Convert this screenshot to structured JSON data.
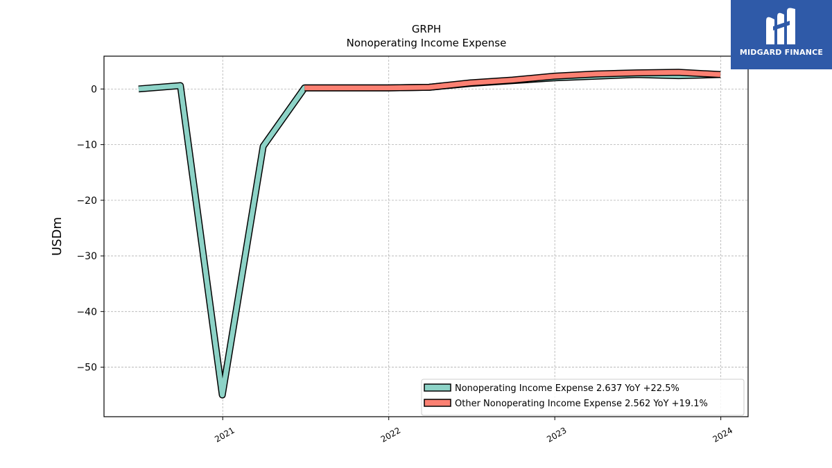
{
  "brand": {
    "name": "MIDGARD FINANCE",
    "colors": {
      "background": "#2f5aa8",
      "foreground": "#ffffff"
    }
  },
  "chart_data": {
    "type": "line",
    "title": "GRPH",
    "subtitle": "Nonoperating Income Expense",
    "xlabel": "",
    "ylabel": "USDm",
    "x_ticks": [
      "2021",
      "2022",
      "2023",
      "2024"
    ],
    "y_ticks": [
      "0",
      "−10",
      "−20",
      "−30",
      "−40",
      "−50"
    ],
    "xlim": [
      "2020-04-15",
      "2024-03-01"
    ],
    "ylim": [
      -58.9,
      5.9
    ],
    "grid": true,
    "legend_position": "lower-right",
    "series": [
      {
        "name": "Nonoperating Income Expense  2.637 YoY +22.5%",
        "color": "#8dd3c7",
        "points": [
          [
            "2020-06-30",
            0.0
          ],
          [
            "2020-09-30",
            0.6
          ],
          [
            "2020-12-31",
            -55.0
          ],
          [
            "2021-03-31",
            -10.3
          ],
          [
            "2021-06-30",
            0.2
          ],
          [
            "2021-09-30",
            0.2
          ],
          [
            "2021-12-31",
            0.2
          ],
          [
            "2022-03-31",
            0.3
          ],
          [
            "2022-06-30",
            1.0
          ],
          [
            "2022-09-30",
            1.5
          ],
          [
            "2022-12-31",
            2.0
          ],
          [
            "2023-03-31",
            2.3
          ],
          [
            "2023-06-30",
            2.6
          ],
          [
            "2023-09-30",
            2.4
          ],
          [
            "2023-12-31",
            2.6
          ]
        ]
      },
      {
        "name": "Other Nonoperating Income Expense  2.562 YoY +19.1%",
        "color": "#fb8072",
        "points": [
          [
            "2021-06-30",
            0.2
          ],
          [
            "2021-09-30",
            0.2
          ],
          [
            "2021-12-31",
            0.2
          ],
          [
            "2022-03-31",
            0.3
          ],
          [
            "2022-06-30",
            1.1
          ],
          [
            "2022-09-30",
            1.6
          ],
          [
            "2022-12-31",
            2.3
          ],
          [
            "2023-03-31",
            2.7
          ],
          [
            "2023-06-30",
            2.9
          ],
          [
            "2023-09-30",
            3.0
          ],
          [
            "2023-12-31",
            2.6
          ]
        ]
      }
    ]
  }
}
